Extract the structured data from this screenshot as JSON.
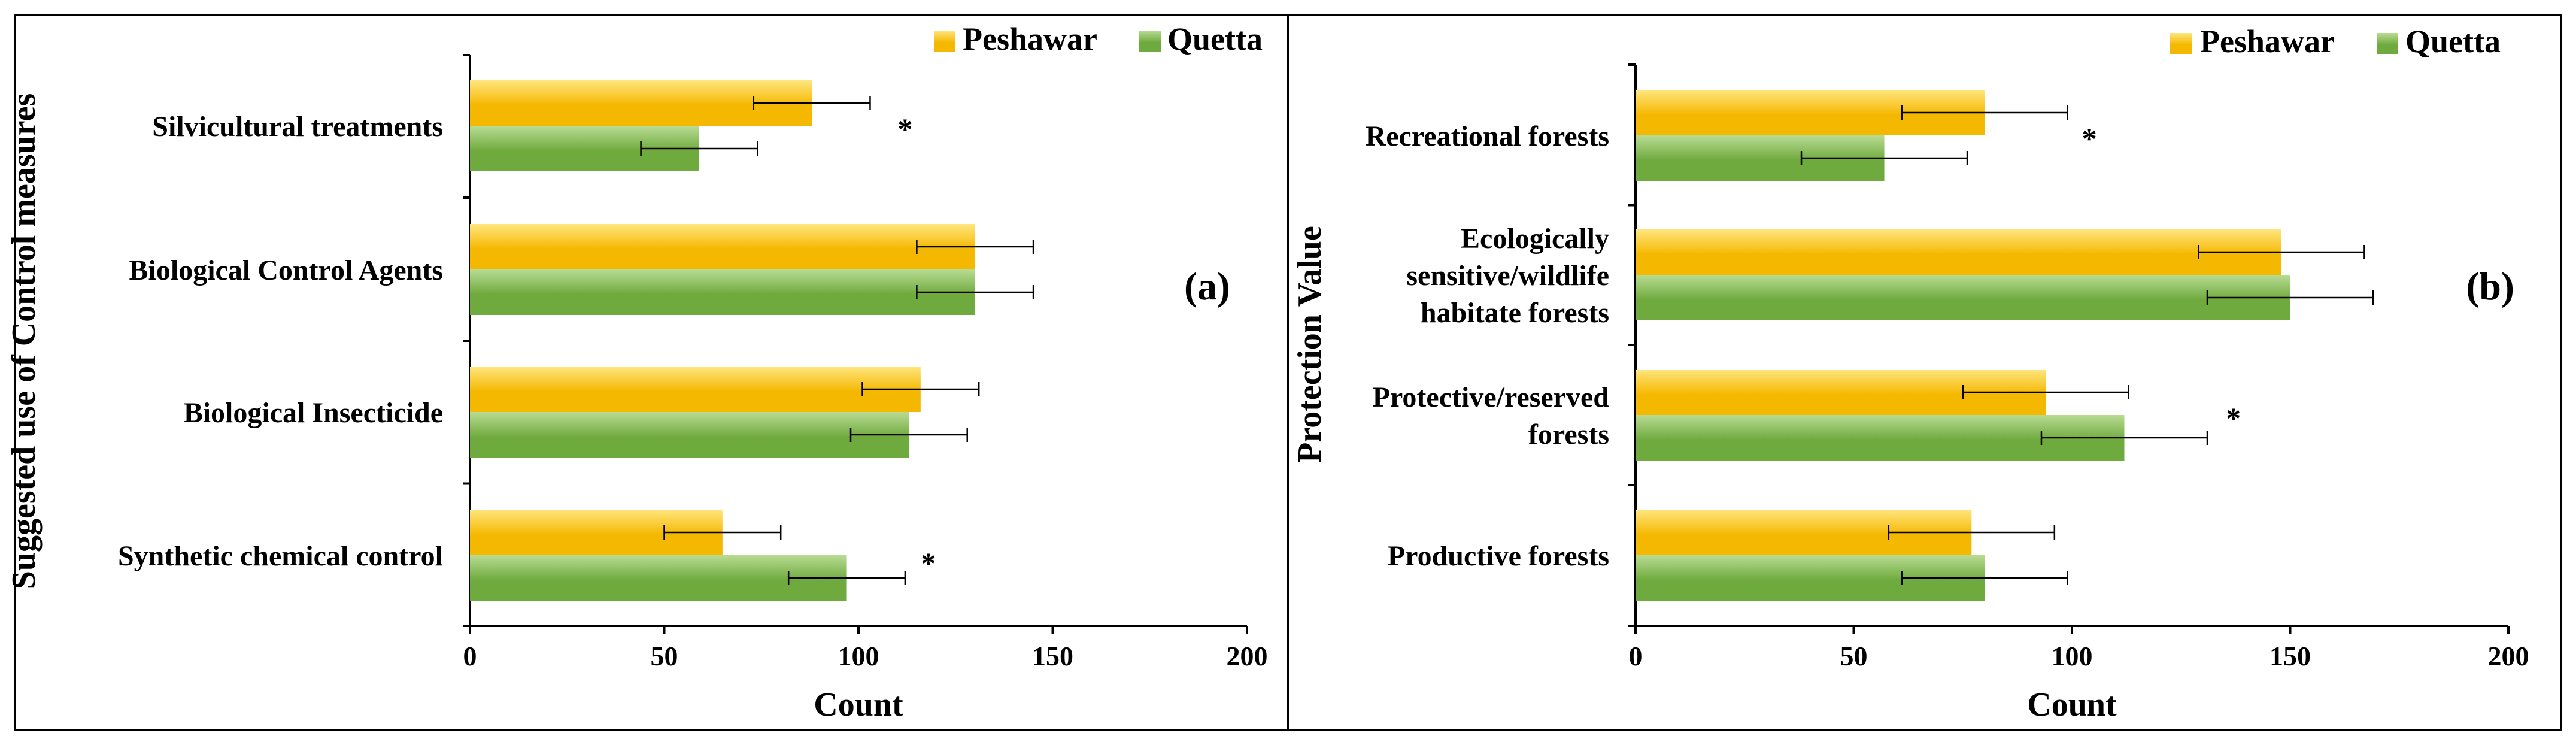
{
  "colors": {
    "peshawar": "#F5B800",
    "peshawar_light": "#FFE680",
    "quetta": "#6FAA3E",
    "quetta_light": "#B9DC93"
  },
  "legend": {
    "peshawar": "Peshawar",
    "quetta": "Quetta"
  },
  "chart_data": [
    {
      "panel": "(a)",
      "type": "bar",
      "orientation": "horizontal",
      "ylabel": "Suggested use of Control measures",
      "xlabel": "Count",
      "xlim": [
        0,
        200
      ],
      "xticks": [
        0,
        50,
        100,
        150,
        200
      ],
      "categories": [
        [
          "Silvicultural treatments"
        ],
        [
          "Biological Control Agents"
        ],
        [
          "Biological Insecticide"
        ],
        [
          "Synthetic chemical control"
        ]
      ],
      "series": [
        {
          "name": "Peshawar",
          "values": [
            88,
            130,
            116,
            65
          ],
          "errors": [
            15,
            15,
            15,
            15
          ]
        },
        {
          "name": "Quetta",
          "values": [
            59,
            130,
            113,
            97
          ],
          "errors": [
            15,
            15,
            15,
            15
          ]
        }
      ],
      "significance": [
        {
          "category": 0,
          "label": "*",
          "value": 112,
          "series": "between"
        },
        {
          "category": 3,
          "label": "*",
          "value": 118,
          "series": "Quetta"
        }
      ]
    },
    {
      "panel": "(b)",
      "type": "bar",
      "orientation": "horizontal",
      "ylabel": "Protection Value",
      "xlabel": "Count",
      "xlim": [
        0,
        200
      ],
      "xticks": [
        0,
        50,
        100,
        150,
        200
      ],
      "categories": [
        [
          "Recreational forests"
        ],
        [
          "Ecologically",
          "sensitive/wildlife",
          "habitate forests"
        ],
        [
          "Protective/reserved",
          "forests"
        ],
        [
          "Productive forests"
        ]
      ],
      "series": [
        {
          "name": "Peshawar",
          "values": [
            80,
            148,
            94,
            77
          ],
          "errors": [
            19,
            19,
            19,
            19
          ]
        },
        {
          "name": "Quetta",
          "values": [
            57,
            150,
            112,
            80
          ],
          "errors": [
            19,
            19,
            19,
            19
          ]
        }
      ],
      "significance": [
        {
          "category": 0,
          "label": "*",
          "value": 104,
          "series": "between"
        },
        {
          "category": 2,
          "label": "*",
          "value": 137,
          "series": "between"
        }
      ]
    }
  ]
}
